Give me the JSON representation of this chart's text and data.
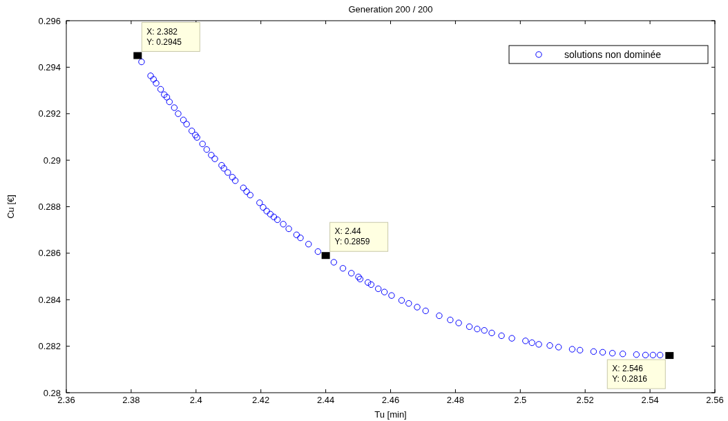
{
  "chart_data": {
    "type": "scatter",
    "title": "Generation 200 / 200",
    "xlabel": "Tu [min]",
    "ylabel": "Cu [€]",
    "xlim": [
      2.36,
      2.56
    ],
    "xticks": [
      2.36,
      2.38,
      2.4,
      2.42,
      2.44,
      2.46,
      2.48,
      2.5,
      2.52,
      2.54,
      2.56
    ],
    "ylim": [
      0.28,
      0.296
    ],
    "yticks": [
      0.28,
      0.282,
      0.284,
      0.286,
      0.288,
      0.29,
      0.292,
      0.294,
      0.296
    ],
    "grid": false,
    "legend": "top right",
    "marker": "circle",
    "x": [
      2.3832,
      2.386,
      2.3869,
      2.3877,
      2.3891,
      2.3902,
      2.391,
      2.3918,
      2.3933,
      2.3945,
      2.3961,
      2.3971,
      2.3987,
      2.3998,
      2.4003,
      2.402,
      2.4033,
      2.4047,
      2.4058,
      2.4079,
      2.4086,
      2.4098,
      2.4112,
      2.4121,
      2.4146,
      2.4156,
      2.4167,
      2.4196,
      2.4207,
      2.4218,
      2.4229,
      2.424,
      2.4251,
      2.4269,
      2.4286,
      2.431,
      2.4322,
      2.4347,
      2.4376,
      2.4425,
      2.4453,
      2.4479,
      2.4501,
      2.453,
      2.4506,
      2.454,
      2.4562,
      2.4581,
      2.4603,
      2.4634,
      2.4656,
      2.4682,
      2.4708,
      2.475,
      2.4784,
      2.481,
      2.4843,
      2.4867,
      2.4889,
      2.4912,
      2.4942,
      2.4974,
      2.5016,
      2.5036,
      2.5057,
      2.5091,
      2.5118,
      2.516,
      2.5184,
      2.5226,
      2.5254,
      2.5284,
      2.5316,
      2.5358,
      2.5386,
      2.5409,
      2.5431
    ],
    "series": [
      {
        "name": "solutions non dominée",
        "color": "#0000ff",
        "values": [
          0.29423,
          0.29363,
          0.29348,
          0.29331,
          0.29305,
          0.29282,
          0.29271,
          0.29251,
          0.29226,
          0.292,
          0.29173,
          0.29155,
          0.29126,
          0.29108,
          0.29098,
          0.2907,
          0.29046,
          0.29022,
          0.29006,
          0.28978,
          0.28965,
          0.28947,
          0.28927,
          0.28912,
          0.28881,
          0.28865,
          0.2885,
          0.28817,
          0.28797,
          0.28781,
          0.28768,
          0.28756,
          0.28744,
          0.28725,
          0.28705,
          0.28679,
          0.28666,
          0.28639,
          0.28607,
          0.28561,
          0.28535,
          0.28514,
          0.28498,
          0.28474,
          0.28489,
          0.28465,
          0.28447,
          0.28433,
          0.28418,
          0.28397,
          0.28384,
          0.28368,
          0.28352,
          0.28331,
          0.28313,
          0.283,
          0.28284,
          0.28274,
          0.28268,
          0.28257,
          0.28245,
          0.28234,
          0.28223,
          0.28215,
          0.28208,
          0.28203,
          0.28196,
          0.28187,
          0.28183,
          0.28177,
          0.28174,
          0.2817,
          0.28167,
          0.28164,
          0.28162,
          0.28162,
          0.28162
        ]
      }
    ],
    "annotations": [
      {
        "text": "X: 2.382\nY: 0.2945",
        "x": 2.382,
        "y": 0.2945
      },
      {
        "text": "X: 2.44\nY: 0.2859",
        "x": 2.44,
        "y": 0.2859
      },
      {
        "text": "X: 2.546\nY: 0.2816",
        "x": 2.546,
        "y": 0.2816
      }
    ]
  }
}
